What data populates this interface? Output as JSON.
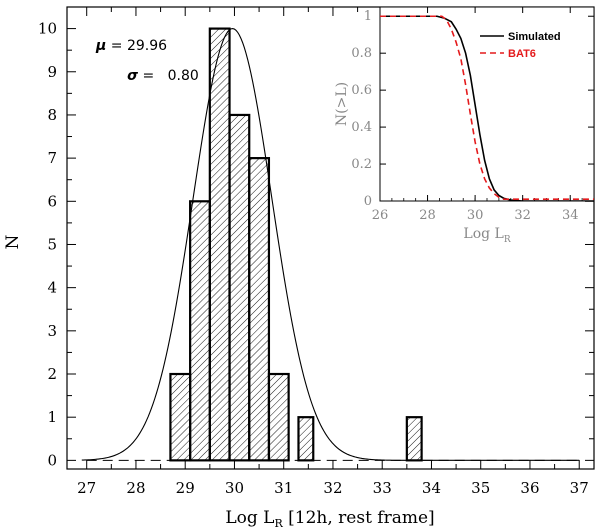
{
  "chart_data": [
    {
      "type": "bar",
      "title": "",
      "xlabel": "Log L",
      "xlabel_sub": "R",
      "xlabel_suffix": " [12h, rest frame]",
      "ylabel": "N",
      "xlim": [
        26.6,
        37.3
      ],
      "ylim": [
        -0.2,
        10.5
      ],
      "xticks": [
        27,
        28,
        29,
        30,
        31,
        32,
        33,
        34,
        35,
        36,
        37
      ],
      "yticks": [
        0,
        1,
        2,
        3,
        4,
        5,
        6,
        7,
        8,
        9,
        10
      ],
      "bin_width": 0.4,
      "bins": [
        {
          "x0": 28.7,
          "value": 2
        },
        {
          "x0": 29.1,
          "value": 6
        },
        {
          "x0": 29.5,
          "value": 10
        },
        {
          "x0": 29.9,
          "value": 8
        },
        {
          "x0": 30.3,
          "value": 7
        },
        {
          "x0": 30.7,
          "value": 2
        },
        {
          "x0": 31.1,
          "value": 0
        },
        {
          "x0": 31.3,
          "value": 1,
          "width": 0.3
        },
        {
          "x0": 33.5,
          "value": 1,
          "width": 0.3
        }
      ],
      "gaussian": {
        "mu": 29.96,
        "sigma": 0.8,
        "peak": 10
      },
      "annotations": [
        {
          "symbol": "μ",
          "text": " = 29.96"
        },
        {
          "symbol": "σ",
          "text": " =   0.80"
        }
      ]
    },
    {
      "type": "line",
      "xlabel": "Log L",
      "xlabel_sub": "R",
      "ylabel": "N(>L)",
      "xlim": [
        26,
        35
      ],
      "ylim": [
        0,
        1.05
      ],
      "xticks": [
        26,
        28,
        30,
        32,
        34
      ],
      "yticks": [
        0,
        0.2,
        0.4,
        0.6,
        0.8,
        1
      ],
      "ytick_labels": [
        "0",
        "0.2",
        "0.4",
        "0.6",
        "0.8",
        "1"
      ],
      "series": [
        {
          "name": "Simulated",
          "color": "#000000",
          "style": "solid",
          "x": [
            26,
            28.4,
            28.7,
            29.0,
            29.2,
            29.4,
            29.6,
            29.8,
            30.0,
            30.2,
            30.4,
            30.6,
            30.8,
            31.0,
            31.2,
            31.5,
            32.0,
            35
          ],
          "y": [
            1.0,
            1.0,
            0.99,
            0.97,
            0.93,
            0.88,
            0.8,
            0.68,
            0.52,
            0.36,
            0.22,
            0.12,
            0.06,
            0.03,
            0.015,
            0.005,
            0.0,
            0.0
          ]
        },
        {
          "name": "BAT6",
          "color": "#e41a1c",
          "style": "dashed",
          "x": [
            26,
            28.6,
            28.8,
            29.0,
            29.2,
            29.4,
            29.6,
            29.8,
            30.0,
            30.2,
            30.4,
            30.6,
            30.8,
            31.0,
            31.2,
            31.5,
            32.5,
            35
          ],
          "y": [
            1.0,
            1.0,
            0.98,
            0.93,
            0.86,
            0.77,
            0.63,
            0.47,
            0.32,
            0.2,
            0.12,
            0.07,
            0.04,
            0.02,
            0.01,
            0.01,
            0.01,
            0.01
          ]
        }
      ]
    }
  ]
}
